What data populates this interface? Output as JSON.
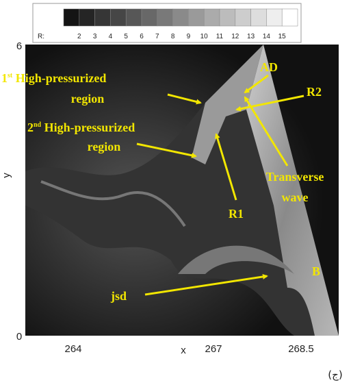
{
  "colorbar": {
    "label": "R:",
    "ticks": [
      "2",
      "3",
      "4",
      "5",
      "6",
      "7",
      "8",
      "9",
      "10",
      "11",
      "12",
      "13",
      "14",
      "15"
    ]
  },
  "axes": {
    "x_label": "x",
    "y_label": "y",
    "x_ticks": [
      "264",
      "267",
      "268.5"
    ],
    "y_ticks": [
      "6",
      "0"
    ]
  },
  "annotations": {
    "first": {
      "ordinal": "1",
      "suffix": "st",
      "line1": " High-pressurized",
      "line2": "region"
    },
    "second": {
      "ordinal": "2",
      "suffix": "nd",
      "line1": " High-pressurized",
      "line2": "region"
    },
    "ad": "AD",
    "r2": "R2",
    "transverse_line1": "Transverse",
    "transverse_line2": "wave",
    "r1": "R1",
    "jsd": "jsd",
    "b": "B"
  },
  "panel_label": "(ج)"
}
